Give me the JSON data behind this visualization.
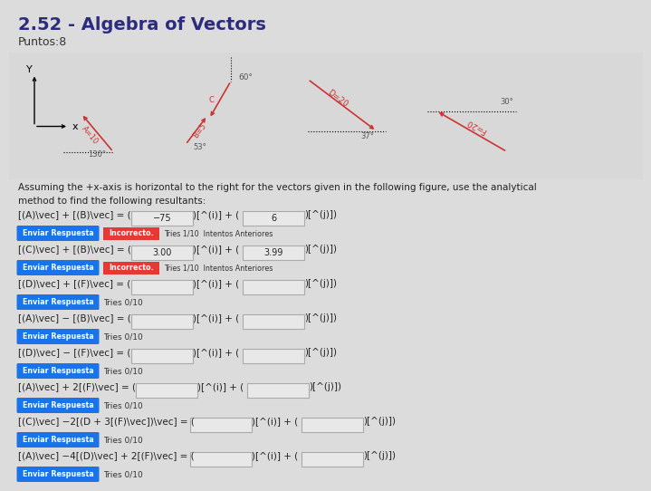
{
  "title": "2.52 - Algebra of Vectors",
  "puntos": "Puntos:8",
  "bg_color": "#dcdcdc",
  "description1": "Assuming the +x-axis is horizontal to the right for the vectors given in the following figure, use the analytical",
  "description2": "method to find the following resultants:",
  "equations": [
    {
      "lhs": "[(A)\\vec] + [(B)\\vec] = (",
      "box1_val": "−75",
      "box2_val": "6",
      "show_incorrect": true,
      "tries_text": "Tries 1/10",
      "intentos": true
    },
    {
      "lhs": "[(C)\\vec] + [(B)\\vec] = (",
      "box1_val": "3.00",
      "box2_val": "3.99",
      "show_incorrect": true,
      "tries_text": "Tries 1/10",
      "intentos": true
    },
    {
      "lhs": "[(D)\\vec] + [(F)\\vec] = (",
      "box1_val": "",
      "box2_val": "",
      "show_incorrect": false,
      "tries_text": "Tries 0/10",
      "intentos": false
    },
    {
      "lhs": "[(A)\\vec] − [(B)\\vec] = (",
      "box1_val": "",
      "box2_val": "",
      "show_incorrect": false,
      "tries_text": "Tries 0/10",
      "intentos": false
    },
    {
      "lhs": "[(D)\\vec] − [(F)\\vec] = (",
      "box1_val": "",
      "box2_val": "",
      "show_incorrect": false,
      "tries_text": "Tries 0/10",
      "intentos": false
    },
    {
      "lhs": "[(A)\\vec] + 2[(F)\\vec] = (",
      "box1_val": "",
      "box2_val": "",
      "show_incorrect": false,
      "tries_text": "Tries 0/10",
      "intentos": false
    },
    {
      "lhs": "[(C)\\vec] −2[(D + 3[(F)\\vec])\\vec] = (",
      "box1_val": "",
      "box2_val": "",
      "show_incorrect": false,
      "tries_text": "Tries 0/10",
      "intentos": false
    },
    {
      "lhs": "[(A)\\vec] −4[(D)\\vec] + 2[(F)\\vec] = (",
      "box1_val": "",
      "box2_val": "",
      "show_incorrect": false,
      "tries_text": "Tries 0/10",
      "intentos": false
    }
  ],
  "btn_color": "#1a73e8",
  "btn_text_color": "#ffffff",
  "btn_label": "Enviar Respuesta",
  "incorrect_bg": "#e53935",
  "text_color": "#222222"
}
